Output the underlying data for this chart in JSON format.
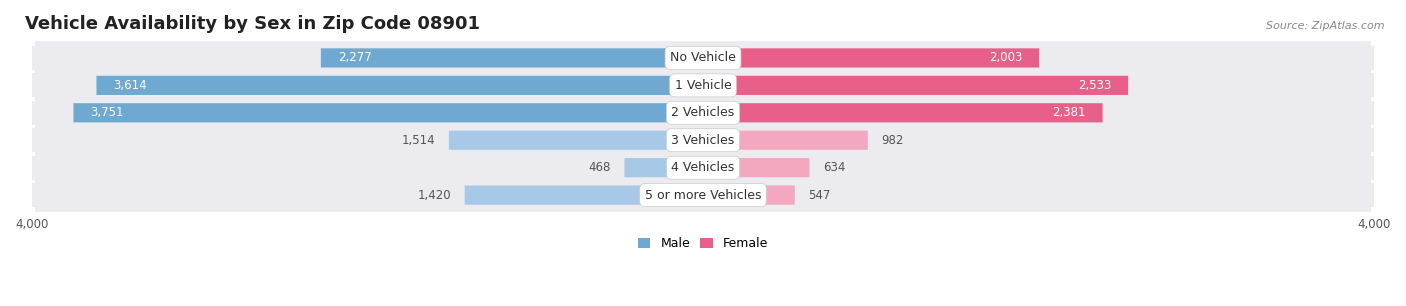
{
  "title": "Vehicle Availability by Sex in Zip Code 08901",
  "source": "Source: ZipAtlas.com",
  "categories": [
    "No Vehicle",
    "1 Vehicle",
    "2 Vehicles",
    "3 Vehicles",
    "4 Vehicles",
    "5 or more Vehicles"
  ],
  "male_values": [
    2277,
    3614,
    3751,
    1514,
    468,
    1420
  ],
  "female_values": [
    2003,
    2533,
    2381,
    982,
    634,
    547
  ],
  "male_color_large": "#6fa8d0",
  "male_color_small": "#a8c8e8",
  "female_color_large": "#e8608a",
  "female_color_small": "#f4a8c0",
  "axis_max": 4000,
  "background_color": "#ffffff",
  "row_bg_color": "#ebebf0",
  "row_gap_color": "#ffffff",
  "legend_male": "Male",
  "legend_female": "Female",
  "title_fontsize": 13,
  "source_fontsize": 8,
  "label_fontsize": 8.5,
  "cat_fontsize": 9,
  "threshold_large": 1800,
  "male_label_color_inside": "#ffffff",
  "male_label_color_outside": "#555555",
  "female_label_color_inside": "#ffffff",
  "female_label_color_outside": "#555555"
}
